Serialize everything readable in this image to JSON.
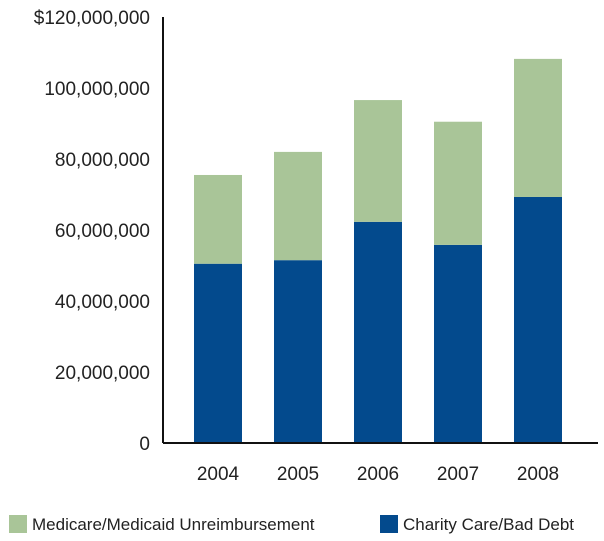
{
  "chart_data": {
    "type": "bar",
    "stacked": true,
    "categories": [
      "2004",
      "2005",
      "2006",
      "2007",
      "2008"
    ],
    "series": [
      {
        "name": "Charity Care/Bad Debt",
        "color": "#034a8d",
        "values": [
          50500000,
          51500000,
          62300000,
          55800000,
          69300000
        ]
      },
      {
        "name": "Medicare/Medicaid Unreimbursement",
        "color": "#a9c598",
        "values": [
          25000000,
          30500000,
          34300000,
          34700000,
          38900000
        ]
      }
    ],
    "yticks": [
      "0",
      "20,000,000",
      "40,000,000",
      "60,000,000",
      "80,000,000",
      "100,000,000",
      "$120,000,000"
    ],
    "ylim": [
      0,
      120000000
    ],
    "grid": false,
    "legend_placement": "bottom",
    "legend_order": [
      1,
      0
    ]
  }
}
